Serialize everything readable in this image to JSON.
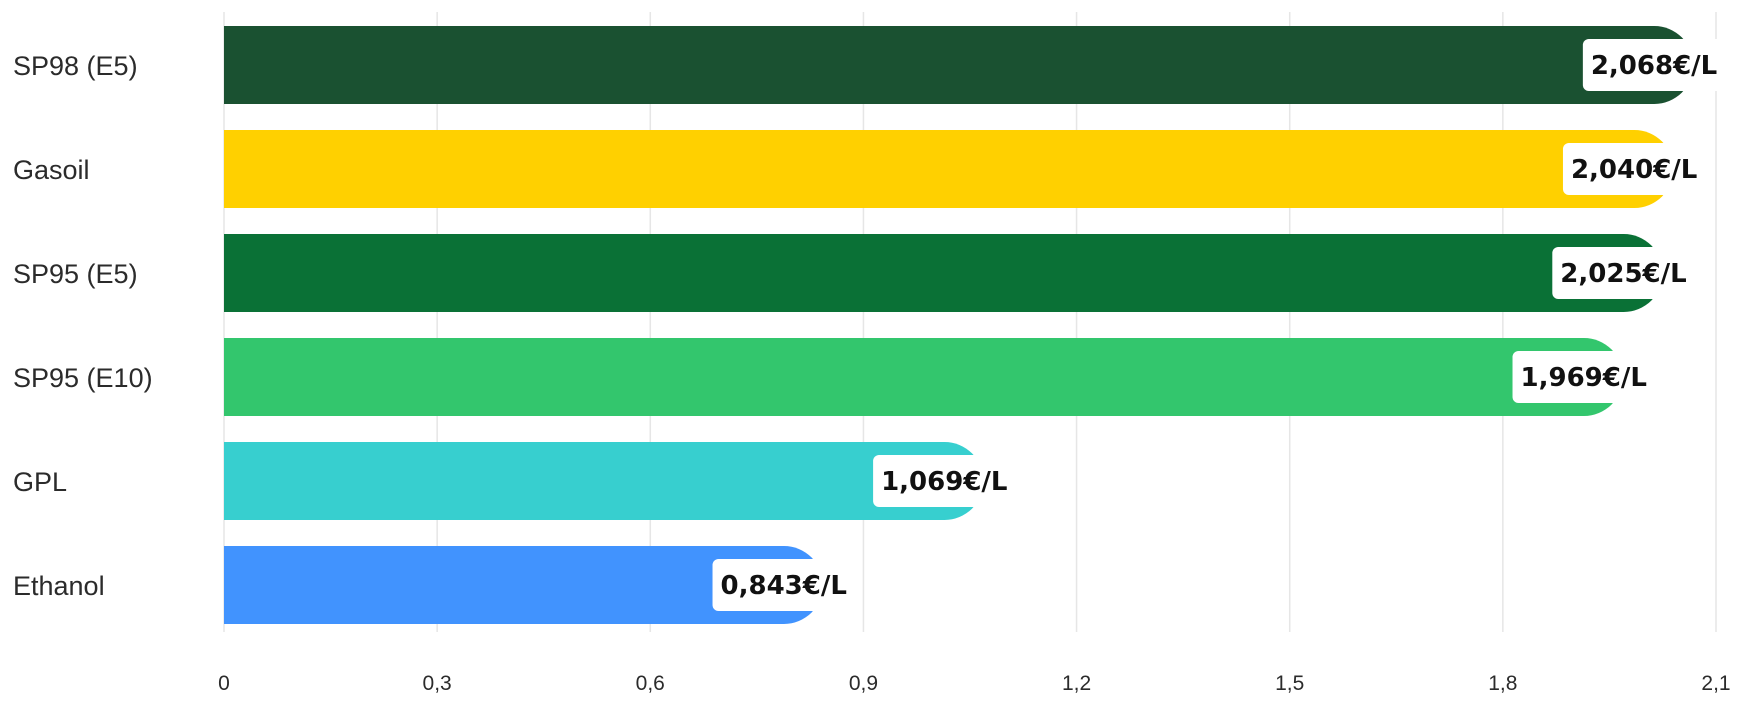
{
  "chart_data": {
    "type": "bar",
    "orientation": "horizontal",
    "categories": [
      "SP98 (E5)",
      "Gasoil",
      "SP95 (E5)",
      "SP95 (E10)",
      "GPL",
      "Ethanol"
    ],
    "values": [
      2.068,
      2.04,
      2.025,
      1.969,
      1.069,
      0.843
    ],
    "value_labels": [
      "2,068€/L",
      "2,040€/L",
      "2,025€/L",
      "1,969€/L",
      "1,069€/L",
      "0,843€/L"
    ],
    "colors": [
      "#1a5131",
      "#ffd000",
      "#0a7136",
      "#33c66d",
      "#37cfcf",
      "#4193fe"
    ],
    "x_ticks": [
      0,
      0.3,
      0.6,
      0.9,
      1.2,
      1.5,
      1.8,
      2.1
    ],
    "x_tick_labels": [
      "0",
      "0,3",
      "0,6",
      "0,9",
      "1,2",
      "1,5",
      "1,8",
      "2,1"
    ],
    "xlim": [
      0,
      2.1
    ],
    "grid": true,
    "legend": "none",
    "title": "",
    "xlabel": "",
    "ylabel": ""
  }
}
